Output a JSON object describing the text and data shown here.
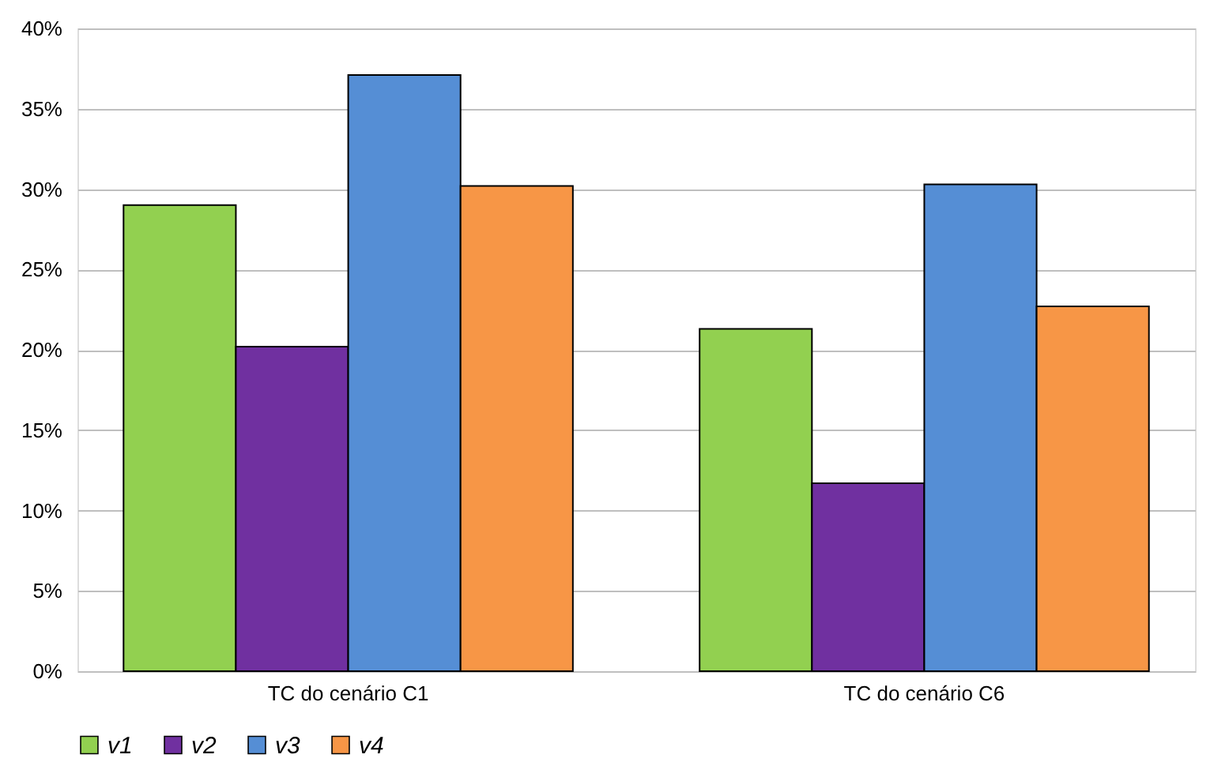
{
  "chart_data": {
    "type": "bar",
    "categories": [
      "TC do cenário C1",
      "TC do cenário C6"
    ],
    "series": [
      {
        "name": "v1",
        "color": "#92d050",
        "values": [
          29.0,
          21.3
        ]
      },
      {
        "name": "v2",
        "color": "#7030a0",
        "values": [
          20.2,
          11.7
        ]
      },
      {
        "name": "v3",
        "color": "#558ed5",
        "values": [
          37.1,
          30.3
        ]
      },
      {
        "name": "v4",
        "color": "#f79646",
        "values": [
          30.2,
          22.7
        ]
      }
    ],
    "ylim": [
      0,
      40
    ],
    "yticks": [
      {
        "value": 0,
        "label": "0%"
      },
      {
        "value": 5,
        "label": "5%"
      },
      {
        "value": 10,
        "label": "10%"
      },
      {
        "value": 15,
        "label": "15%"
      },
      {
        "value": 20,
        "label": "20%"
      },
      {
        "value": 25,
        "label": "25%"
      },
      {
        "value": 30,
        "label": "30%"
      },
      {
        "value": 35,
        "label": "35%"
      },
      {
        "value": 40,
        "label": "40%"
      }
    ],
    "grid": "y",
    "legend": "bottom"
  }
}
